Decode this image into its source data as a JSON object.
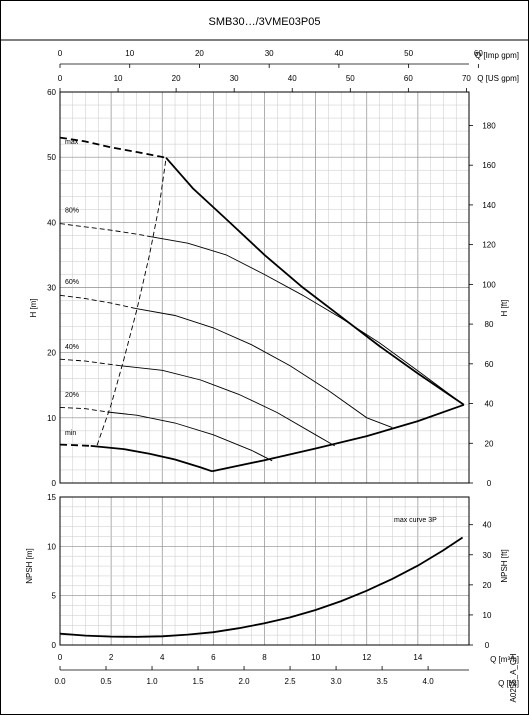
{
  "title": "SMB30…/3VME03P05",
  "code": "A0255_A_CH",
  "chart_data": [
    {
      "type": "line",
      "name": "head",
      "xlabel": "Q [m³/h]",
      "xlim": [
        0,
        16
      ],
      "ylabel_left": "H [m]",
      "ylim_left": [
        0,
        60
      ],
      "yticks_left": [
        "0",
        "10",
        "20",
        "30",
        "40",
        "50",
        "60"
      ],
      "ylabel_right": "H [ft]",
      "yticks_right": [
        "0",
        "20",
        "40",
        "60",
        "80",
        "100",
        "120",
        "140",
        "160",
        "180"
      ],
      "top_axis_1_label": "Q [Imp gpm]",
      "top_axis_1_ticks": [
        "0",
        "10",
        "20",
        "30",
        "40",
        "50",
        "60"
      ],
      "top_axis_2_label": "Q [US gpm]",
      "top_axis_2_ticks": [
        "0",
        "10",
        "20",
        "30",
        "40",
        "50",
        "60",
        "70"
      ],
      "curve_labels": [
        "max",
        "80%",
        "60%",
        "40%",
        "20%",
        "min"
      ],
      "series": [
        {
          "name": "max",
          "style": "solid",
          "x": [
            4.15,
            5.2,
            6.5,
            8.0,
            9.5,
            11.0,
            12.5,
            14.0,
            15.8
          ],
          "y": [
            49.9,
            45.2,
            40.5,
            35.0,
            30.0,
            25.5,
            21.0,
            16.8,
            12.0
          ]
        },
        {
          "name": "max",
          "style": "dashed",
          "x": [
            0,
            1.0,
            2.0,
            3.0,
            4.15
          ],
          "y": [
            53.0,
            52.4,
            51.5,
            50.8,
            49.9
          ]
        },
        {
          "name": "80%",
          "style": "solid",
          "x": [
            3.55,
            5.0,
            6.5,
            8.0,
            9.5,
            11.0,
            12.5,
            14.0,
            15.8
          ],
          "y": [
            37.8,
            36.8,
            35.0,
            32.0,
            28.8,
            25.3,
            21.5,
            17.2,
            12.0
          ]
        },
        {
          "name": "80%",
          "style": "dashed",
          "x": [
            0,
            1.0,
            2.0,
            3.0,
            3.55
          ],
          "y": [
            39.8,
            39.3,
            38.8,
            38.2,
            37.8
          ]
        },
        {
          "name": "60%",
          "style": "solid",
          "x": [
            2.95,
            4.5,
            6.0,
            7.5,
            9.0,
            10.5,
            12.0,
            13.0
          ],
          "y": [
            26.8,
            25.7,
            23.8,
            21.2,
            18.0,
            14.2,
            10.0,
            8.5
          ]
        },
        {
          "name": "60%",
          "style": "dashed",
          "x": [
            0,
            1.0,
            2.0,
            2.95
          ],
          "y": [
            28.8,
            28.3,
            27.6,
            26.8
          ]
        },
        {
          "name": "40%",
          "style": "solid",
          "x": [
            2.35,
            4.0,
            5.5,
            7.0,
            8.5,
            10.0,
            10.75
          ],
          "y": [
            18.0,
            17.3,
            15.8,
            13.6,
            10.8,
            7.4,
            5.7
          ]
        },
        {
          "name": "40%",
          "style": "dashed",
          "x": [
            0,
            1.0,
            2.35
          ],
          "y": [
            19.0,
            18.7,
            18.0
          ]
        },
        {
          "name": "20%",
          "style": "solid",
          "x": [
            1.85,
            3.0,
            4.5,
            6.0,
            7.5,
            8.3
          ],
          "y": [
            10.9,
            10.4,
            9.2,
            7.4,
            5.0,
            3.4
          ]
        },
        {
          "name": "20%",
          "style": "dashed",
          "x": [
            0,
            1.0,
            1.85
          ],
          "y": [
            11.6,
            11.4,
            10.9
          ]
        },
        {
          "name": "min",
          "style": "solid",
          "x": [
            1.2,
            2.5,
            3.5,
            4.5,
            5.5,
            5.95
          ],
          "y": [
            5.7,
            5.2,
            4.5,
            3.6,
            2.4,
            1.8
          ]
        },
        {
          "name": "min",
          "style": "dashed",
          "x": [
            0,
            0.6,
            1.2
          ],
          "y": [
            5.9,
            5.8,
            5.7
          ]
        },
        {
          "name": "system",
          "style": "solid",
          "x": [
            5.95,
            8.0,
            10.0,
            12.0,
            14.0,
            15.8
          ],
          "y": [
            1.8,
            3.5,
            5.3,
            7.2,
            9.5,
            12.0
          ]
        },
        {
          "name": "min-flow",
          "style": "dashed",
          "x": [
            1.45,
            2.0,
            2.5,
            3.0,
            3.5,
            3.9,
            4.15
          ],
          "y": [
            5.8,
            12.0,
            19.0,
            26.5,
            35.0,
            43.0,
            49.9
          ]
        }
      ]
    },
    {
      "type": "line",
      "name": "npsh",
      "xlabel": "Q [m³/h]",
      "xlim": [
        0,
        16
      ],
      "xticks": [
        "0",
        "2",
        "4",
        "6",
        "8",
        "10",
        "12",
        "14"
      ],
      "ylabel_left": "NPSH [m]",
      "ylim_left": [
        0,
        15
      ],
      "yticks_left": [
        "0",
        "5",
        "10",
        "15"
      ],
      "ylabel_right": "NPSH [ft]",
      "yticks_right": [
        "0",
        "10",
        "20",
        "30",
        "40"
      ],
      "bottom_axis_2_label": "Q [l/s]",
      "bottom_axis_2_ticks": [
        "0.0",
        "0.5",
        "1.0",
        "1.5",
        "2.0",
        "2.5",
        "3.0",
        "3.5",
        "4.0"
      ],
      "annotation": "max curve 3P",
      "series": [
        {
          "name": "max",
          "style": "solid",
          "x": [
            0,
            1.0,
            2.0,
            3.0,
            4.0,
            5.0,
            6.0,
            7.0,
            8.0,
            9.0,
            10.0,
            11.0,
            12.0,
            13.0,
            14.0,
            15.0,
            15.75
          ],
          "y": [
            1.15,
            0.95,
            0.85,
            0.82,
            0.88,
            1.05,
            1.3,
            1.7,
            2.2,
            2.8,
            3.55,
            4.45,
            5.5,
            6.7,
            8.05,
            9.6,
            10.9
          ]
        }
      ]
    }
  ]
}
